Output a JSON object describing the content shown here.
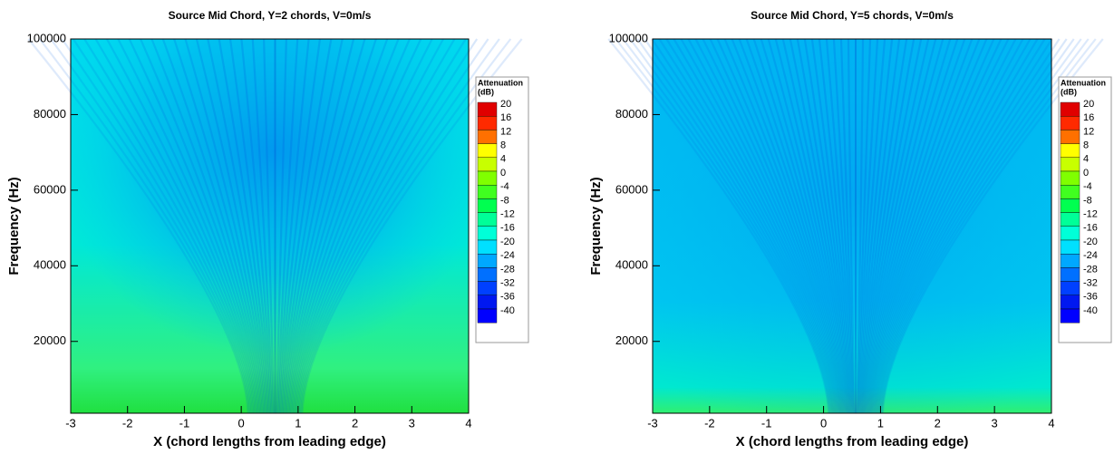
{
  "chart_data": [
    {
      "type": "contour",
      "title": "Source Mid Chord, Y=2 chords, V=0m/s",
      "xlabel": "X (chord lengths from leading edge)",
      "ylabel": "Frequency (Hz)",
      "xlim": [
        -3,
        4
      ],
      "xticks": [
        -3,
        -2,
        -1,
        0,
        1,
        2,
        3,
        4
      ],
      "ylim": [
        1000,
        100000
      ],
      "yticks": [
        20000,
        40000,
        60000,
        80000,
        100000
      ],
      "colorbar": {
        "title": [
          "Attenuation",
          "(dB)"
        ],
        "levels": [
          20,
          16,
          12,
          8,
          4,
          0,
          -4,
          -8,
          -12,
          -16,
          -20,
          -24,
          -28,
          -32,
          -36,
          -40
        ],
        "colors": [
          "#e00000",
          "#ff2a00",
          "#ff7000",
          "#ffff00",
          "#c8ff00",
          "#80ff00",
          "#40ff20",
          "#00ff50",
          "#00ff98",
          "#00ffd8",
          "#00e0ff",
          "#00a8ff",
          "#0070ff",
          "#0040ff",
          "#0018f0",
          "#0000ff"
        ]
      }
    },
    {
      "type": "contour",
      "title": "Source Mid Chord, Y=5 chords, V=0m/s",
      "xlabel": "X (chord lengths from leading edge)",
      "ylabel": "Frequency (Hz)",
      "xlim": [
        -3,
        4
      ],
      "xticks": [
        -3,
        -2,
        -1,
        0,
        1,
        2,
        3,
        4
      ],
      "ylim": [
        1000,
        100000
      ],
      "yticks": [
        20000,
        40000,
        60000,
        80000,
        100000
      ],
      "colorbar": {
        "title": [
          "Attenuation",
          "(dB)"
        ],
        "levels": [
          20,
          16,
          12,
          8,
          4,
          0,
          -4,
          -8,
          -12,
          -16,
          -20,
          -24,
          -28,
          -32,
          -36,
          -40
        ],
        "colors": [
          "#e00000",
          "#ff2a00",
          "#ff7000",
          "#ffff00",
          "#c8ff00",
          "#80ff00",
          "#40ff20",
          "#00ff50",
          "#00ff98",
          "#00ffd8",
          "#00e0ff",
          "#00a8ff",
          "#0070ff",
          "#0040ff",
          "#0018f0",
          "#0000ff"
        ]
      }
    }
  ]
}
